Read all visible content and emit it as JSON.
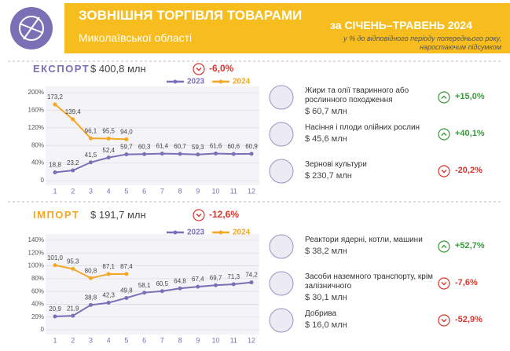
{
  "header": {
    "title": "ЗОВНІШНЯ ТОРГІВЛЯ ТОВАРАМИ",
    "subtitle": "Миколаївської області",
    "period": "за СІЧЕНЬ–ТРАВЕНЬ 2024",
    "note": "у % до відповідного періоду попереднього року, наростаючим підсумком"
  },
  "sections": [
    {
      "label": "ЕКСПОРТ",
      "total": "$ 400,8 млн",
      "change": "-6,0%",
      "items": [
        {
          "name": "Жири та олії тваринного або рослинного походження",
          "amount": "$ 60,7 млн",
          "change": "+15,0%"
        },
        {
          "name": "Насіння і плоди олійних рослин",
          "amount": "$ 45,6 млн",
          "change": "+40,1%"
        },
        {
          "name": "Зернові культури",
          "amount": "$ 230,7 млн",
          "change": "-20,2%"
        }
      ]
    },
    {
      "label": "ІМПОРТ",
      "total": "$ 191,7 млн",
      "change": "-12,6%",
      "items": [
        {
          "name": "Реактори ядерні, котли, машини",
          "amount": "$ 38,2 млн",
          "change": "+52,7%"
        },
        {
          "name": "Засоби наземного транспорту, крім залізничного",
          "amount": "$ 30,1 млн",
          "change": "-7,6%"
        },
        {
          "name": "Добрива",
          "amount": "$ 16,0 млн",
          "change": "-52,9%"
        }
      ]
    }
  ],
  "chart_data": [
    {
      "type": "line",
      "legend": "top",
      "grid": true,
      "x": [
        1,
        2,
        3,
        4,
        5,
        6,
        7,
        8,
        9,
        10,
        11,
        12
      ],
      "xlim": [
        1,
        12
      ],
      "xticks": [
        1,
        2,
        3,
        4,
        5,
        6,
        7,
        8,
        9,
        10,
        11,
        12
      ],
      "ylim": [
        0,
        200
      ],
      "yticks": [
        0,
        {
          "value": 40,
          "label": "40%"
        },
        {
          "value": 80,
          "label": "80%"
        },
        {
          "value": 120,
          "label": "120%"
        },
        {
          "value": 160,
          "label": "160%"
        },
        {
          "value": 200,
          "label": "200%"
        }
      ],
      "series": [
        {
          "name": "2023",
          "color": "#7b6fb5",
          "values": [
            18.8,
            23.2,
            41.5,
            52.4,
            59.7,
            60.3,
            61.4,
            60.7,
            59.3,
            61.6,
            60.6,
            60.9
          ],
          "value_labels": [
            "18,8",
            "23,2",
            "41,5",
            "52,4",
            "59,7",
            "60,3",
            "61,4",
            "60,7",
            "59,3",
            "61,6",
            "60,6",
            "60,9"
          ]
        },
        {
          "name": "2024",
          "color": "#f5a623",
          "values": [
            173.2,
            139.4,
            96.1,
            95.5,
            94.0,
            null,
            null,
            null,
            null,
            null,
            null,
            null
          ],
          "value_labels": [
            "173,2",
            "139,4",
            "96,1",
            "95,5",
            "94,0",
            null,
            null,
            null,
            null,
            null,
            null,
            null
          ]
        }
      ]
    },
    {
      "type": "line",
      "legend": "top",
      "grid": true,
      "x": [
        1,
        2,
        3,
        4,
        5,
        6,
        7,
        8,
        9,
        10,
        11,
        12
      ],
      "xlim": [
        1,
        12
      ],
      "xticks": [
        1,
        2,
        3,
        4,
        5,
        6,
        7,
        8,
        9,
        10,
        11,
        12
      ],
      "ylim": [
        0,
        140
      ],
      "yticks": [
        0,
        {
          "value": 20,
          "label": "20%"
        },
        {
          "value": 40,
          "label": "40%"
        },
        {
          "value": 60,
          "label": "60%"
        },
        {
          "value": 80,
          "label": "80%"
        },
        {
          "value": 100,
          "label": "100%"
        },
        {
          "value": 120,
          "label": "120%"
        },
        {
          "value": 140,
          "label": "140%"
        }
      ],
      "series": [
        {
          "name": "2023",
          "color": "#7b6fb5",
          "values": [
            20.9,
            21.9,
            38.8,
            42.3,
            49.8,
            58.1,
            60.5,
            64.8,
            67.4,
            69.7,
            71.3,
            74.2
          ],
          "value_labels": [
            "20,9",
            "21,9",
            "38,8",
            "42,3",
            "49,8",
            "58,1",
            "60,5",
            "64,8",
            "67,4",
            "69,7",
            "71,3",
            "74,2"
          ]
        },
        {
          "name": "2024",
          "color": "#f5a623",
          "values": [
            101.0,
            95.3,
            80.8,
            87.1,
            87.4,
            null,
            null,
            null,
            null,
            null,
            null,
            null
          ],
          "value_labels": [
            "101,0",
            "95,3",
            "80,8",
            "87,1",
            "87,4",
            null,
            null,
            null,
            null,
            null,
            null,
            null
          ]
        }
      ]
    }
  ]
}
